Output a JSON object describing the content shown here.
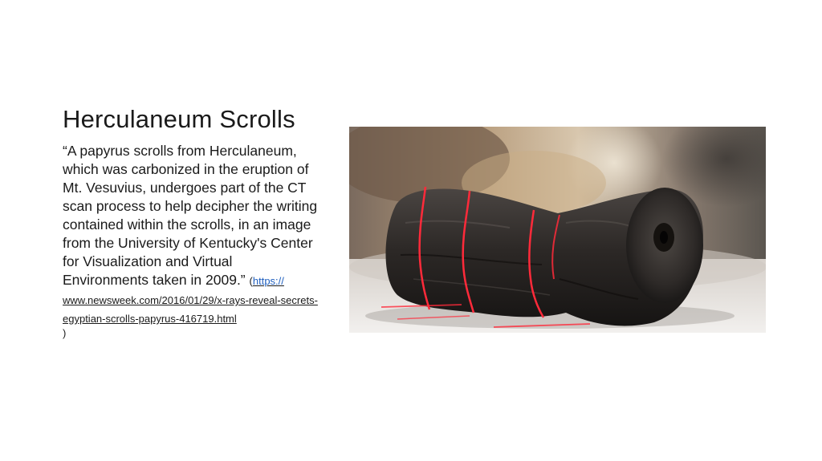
{
  "slide": {
    "title": "Herculaneum Scrolls",
    "quote": "“A papyrus scrolls from Herculaneum, which was carbonized in the eruption of Mt. Vesuvius, undergoes part of the CT scan process to help decipher the writing contained within the scrolls, in an image from the University of Kentucky's Center for Visualization and Virtual Environments taken in 2009.”",
    "cite_open": "(",
    "link_lead": "https://",
    "link_rest": "www.newsweek.com/2016/01/29/x-rays-reveal-secrets-egyptian-scrolls-papyrus-416719.html",
    "cite_close": ")"
  },
  "photo": {
    "subject": "carbonized-scroll-with-red-laser-lines",
    "colors": {
      "laser": "#ff2a3a",
      "scroll": "#2a2624",
      "background_warm": "#a88a68",
      "table": "#e9e6e2"
    }
  }
}
